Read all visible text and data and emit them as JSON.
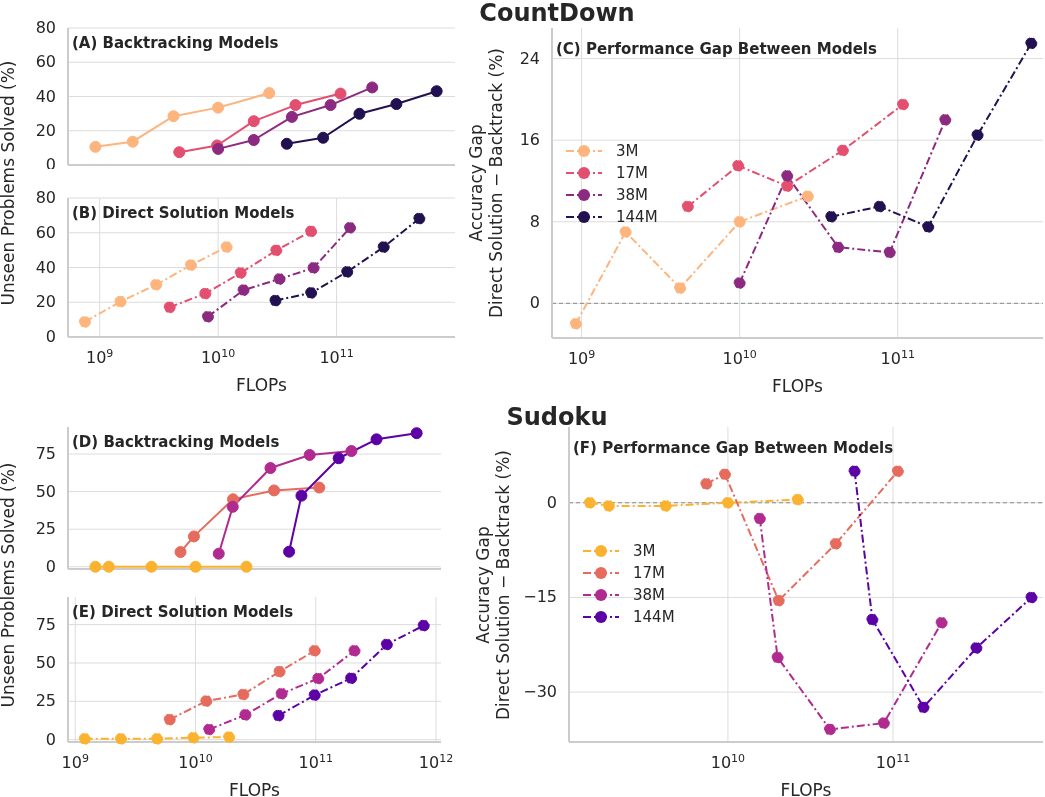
{
  "chart_data": [
    {
      "type": "line",
      "title": "(A) Backtracking Models",
      "ylabel": "Unseen Problems Solved (%)",
      "xlim": [
        540000000.0,
        1000000000000.0
      ],
      "ylim": [
        0,
        80
      ],
      "xticks": [
        {
          "value": 1000000000.0,
          "label": null
        },
        {
          "value": 10000000000.0,
          "label": null
        },
        {
          "value": 100000000000.0,
          "label": null
        }
      ],
      "yticks": [
        0,
        20,
        40,
        60,
        80
      ],
      "log": "x",
      "grid": true,
      "tick_labels": "y",
      "marker": "circle",
      "line_style": "solid",
      "series": [
        {
          "color": "#fdb47d",
          "x": [
            920000000.0,
            1900000000.0,
            4200000000.0,
            10000000000.0,
            27000000000.0
          ],
          "values": [
            10.6,
            13.6,
            28.5,
            33.5,
            42
          ]
        },
        {
          "color": "#e34f6f",
          "x": [
            4700000000.0,
            9800000000.0,
            20000000000.0,
            45000000000.0,
            108000000000.0
          ],
          "values": [
            7.5,
            11.4,
            25.6,
            35,
            41.7
          ]
        },
        {
          "color": "#8c2981",
          "x": [
            10000000000.0,
            20000000000.0,
            42000000000.0,
            89000000000.0,
            200000000000.0
          ],
          "values": [
            9.4,
            14.6,
            28.1,
            35,
            45.3
          ]
        },
        {
          "color": "#221150",
          "x": [
            38000000000.0,
            77000000000.0,
            156000000000.0,
            320000000000.0,
            700000000000.0
          ],
          "values": [
            12.4,
            15.9,
            29.9,
            35.6,
            43.1
          ]
        }
      ]
    },
    {
      "type": "line",
      "title": "(B) Direct Solution Models",
      "xlabel": "FLOPs",
      "xlim": [
        540000000.0,
        1000000000000.0
      ],
      "ylim": [
        0,
        80
      ],
      "xticks": [
        {
          "value": 1000000000.0,
          "label": "10$^{9}$"
        },
        {
          "value": 10000000000.0,
          "label": "10$^{10}$"
        },
        {
          "value": 100000000000.0,
          "label": "10$^{11}$"
        }
      ],
      "yticks": [
        0,
        20,
        40,
        60,
        80
      ],
      "log": "x",
      "grid": true,
      "marker": "circle",
      "line_style": "dashed",
      "series": [
        {
          "color": "#fdb47d",
          "x": [
            750000000.0,
            1500000000.0,
            3000000000.0,
            5900000000.0,
            11800000000.0
          ],
          "values": [
            8.7,
            20.4,
            30.1,
            41.4,
            51.8
          ]
        },
        {
          "color": "#e34f6f",
          "x": [
            3900000000.0,
            7800000000.0,
            15500000000.0,
            31000000000.0,
            61000000000.0
          ],
          "values": [
            17.1,
            25,
            36.9,
            49.9,
            60.8
          ]
        },
        {
          "color": "#8c2981",
          "x": [
            8200000000.0,
            16400000000.0,
            33000000000.0,
            64000000000.0,
            130000000000.0
          ],
          "values": [
            11.7,
            27,
            33.4,
            39.8,
            62.9
          ]
        },
        {
          "color": "#221150",
          "x": [
            30500000000.0,
            61000000000.0,
            123000000000.0,
            250000000000.0,
            500000000000.0
          ],
          "values": [
            21,
            25.4,
            37.5,
            51.8,
            68.2
          ]
        }
      ]
    },
    {
      "type": "line",
      "title": "(C) Performance Gap Between Models",
      "xlabel": "FLOPs",
      "ylabel": "Accuracy Gap\nDirect Solution − Backtrack (%)",
      "annotations": [
        "CountDown"
      ],
      "xlim": [
        650000000.0,
        830000000000.0
      ],
      "ylim": [
        -3.4,
        27
      ],
      "xticks": [
        {
          "value": 1000000000.0,
          "label": "10$^{9}$"
        },
        {
          "value": 10000000000.0,
          "label": "10$^{10}$"
        },
        {
          "value": 100000000000.0,
          "label": "10$^{11}$"
        }
      ],
      "yticks": [
        0,
        8,
        16,
        24
      ],
      "log": "x",
      "grid": true,
      "legend": "left",
      "marker": "circle",
      "line_style": "dashed",
      "ref_lines": [
        {
          "axis": "y",
          "value": 0,
          "color": "#8c8c8c",
          "line_style": "dashed"
        }
      ],
      "series": [
        {
          "name": "3M",
          "color": "#fdb47d",
          "x": [
            920000000.0,
            1900000000.0,
            4200000000.0,
            10000000000.0,
            27000000000.0
          ],
          "values": [
            -2.0,
            7.0,
            1.5,
            8.0,
            10.5
          ]
        },
        {
          "name": "17M",
          "color": "#e34f6f",
          "x": [
            4700000000.0,
            9800000000.0,
            20000000000.0,
            45000000000.0,
            108000000000.0
          ],
          "values": [
            9.5,
            13.5,
            11.5,
            15,
            19.5
          ]
        },
        {
          "name": "38M",
          "color": "#8c2981",
          "x": [
            10000000000.0,
            20000000000.0,
            42000000000.0,
            89000000000.0,
            200000000000.0
          ],
          "values": [
            2.0,
            12.5,
            5.5,
            5.0,
            18
          ]
        },
        {
          "name": "144M",
          "color": "#221150",
          "x": [
            38000000000.0,
            77000000000.0,
            156000000000.0,
            320000000000.0,
            700000000000.0
          ],
          "values": [
            8.5,
            9.5,
            7.5,
            16.5,
            25.5
          ]
        }
      ]
    },
    {
      "type": "line",
      "title": "(D) Backtracking Models",
      "ylabel": "Unseen Problems Solved (%)",
      "xlim": [
        870000000.0,
        1100000000000.0
      ],
      "ylim": [
        -1.5,
        93
      ],
      "xticks": [
        {
          "value": 1000000000.0,
          "label": null
        },
        {
          "value": 10000000000.0,
          "label": null
        },
        {
          "value": 100000000000.0,
          "label": null
        },
        {
          "value": 1000000000000.0,
          "label": null
        }
      ],
      "yticks": [
        0,
        25,
        50,
        75
      ],
      "log": "x",
      "grid": true,
      "tick_labels": "y",
      "marker": "circle",
      "line_style": "solid",
      "series": [
        {
          "color": "#fbb32f",
          "x": [
            1470000000.0,
            1900000000.0,
            4300000000.0,
            10000000000.0,
            26500000000.0
          ],
          "values": [
            0,
            0,
            0,
            0,
            0
          ]
        },
        {
          "color": "#e56b5d",
          "x": [
            7500000000.0,
            9700000000.0,
            20500000000.0,
            45000000000.0,
            107000000000.0
          ],
          "values": [
            9.8,
            20.2,
            44.9,
            50.8,
            52.7
          ]
        },
        {
          "color": "#b12a90",
          "x": [
            15600000000.0,
            20400000000.0,
            42000000000.0,
            89000000000.0,
            198000000000.0
          ],
          "values": [
            8.7,
            39.9,
            65.7,
            74.4,
            77
          ]
        },
        {
          "color": "#5c01a6",
          "x": [
            60000000000.0,
            76000000000.0,
            155000000000.0,
            320000000000.0,
            690000000000.0
          ],
          "values": [
            10,
            47.3,
            72.2,
            84.8,
            88.9
          ]
        }
      ]
    },
    {
      "type": "line",
      "title": "(E) Direct Solution Models",
      "xlabel": "FLOPs",
      "xlim": [
        870000000.0,
        1100000000000.0
      ],
      "ylim": [
        -1.5,
        93
      ],
      "xticks": [
        {
          "value": 1000000000.0,
          "label": "10$^{9}$"
        },
        {
          "value": 10000000000.0,
          "label": "10$^{10}$"
        },
        {
          "value": 100000000000.0,
          "label": "10$^{11}$"
        },
        {
          "value": 1000000000000.0,
          "label": "10$^{12}$"
        }
      ],
      "yticks": [
        0,
        25,
        50,
        75
      ],
      "log": "x",
      "grid": true,
      "marker": "circle",
      "line_style": "dashed",
      "series": [
        {
          "color": "#fbb32f",
          "x": [
            1200000000.0,
            2400000000.0,
            4800000000.0,
            9600000000.0,
            19000000000.0
          ],
          "values": [
            0.6,
            0.6,
            0.6,
            1.3,
            1.7
          ]
        },
        {
          "color": "#e56b5d",
          "x": [
            6100000000.0,
            12300000000.0,
            25000000000.0,
            50000000000.0,
            98000000000.0
          ],
          "values": [
            13.1,
            25.2,
            29.5,
            44.4,
            58
          ]
        },
        {
          "color": "#b12a90",
          "x": [
            13000000000.0,
            26000000000.0,
            52000000000.0,
            105000000000.0,
            210000000000.0
          ],
          "values": [
            6.7,
            16.2,
            30,
            39.9,
            58
          ]
        },
        {
          "color": "#5c01a6",
          "x": [
            49000000000.0,
            98000000000.0,
            197000000000.0,
            390000000000.0,
            790000000000.0
          ],
          "values": [
            15.7,
            29.1,
            40.1,
            62.1,
            74.4
          ]
        }
      ]
    },
    {
      "type": "line",
      "title": "(F) Performance Gap Between Models",
      "xlabel": "FLOPs",
      "ylabel": "Accuracy Gap\nDirect Solution − Backtrack (%)",
      "annotations": [
        "Sudoku"
      ],
      "xlim": [
        1090000000.0,
        810000000000.0
      ],
      "ylim": [
        -37.9,
        12
      ],
      "xticks": [
        {
          "value": 10000000000.0,
          "label": "10$^{10}$"
        },
        {
          "value": 100000000000.0,
          "label": "10$^{11}$"
        }
      ],
      "yticks": [
        -30,
        -15,
        0
      ],
      "log": "x",
      "grid": true,
      "legend": "left",
      "marker": "circle",
      "line_style": "dashed",
      "ref_lines": [
        {
          "axis": "y",
          "value": 0,
          "color": "#8c8c8c",
          "line_style": "dashed"
        }
      ],
      "series": [
        {
          "name": "3M",
          "color": "#fbb32f",
          "x": [
            1460000000.0,
            1900000000.0,
            4200000000.0,
            10000000000.0,
            26500000000.0
          ],
          "values": [
            0,
            -0.5,
            -0.5,
            0,
            0.5
          ]
        },
        {
          "name": "17M",
          "color": "#e56b5d",
          "x": [
            7400000000.0,
            9600000000.0,
            20300000000.0,
            45000000000.0,
            107000000000.0
          ],
          "values": [
            3,
            4.5,
            -15.5,
            -6.5,
            5
          ]
        },
        {
          "name": "38M",
          "color": "#b12a90",
          "x": [
            15600000000.0,
            20000000000.0,
            41500000000.0,
            88000000000.0,
            197000000000.0
          ],
          "values": [
            -2.5,
            -24.5,
            -35.9,
            -34.9,
            -19
          ]
        },
        {
          "name": "144M",
          "color": "#5c01a6",
          "x": [
            58500000000.0,
            75000000000.0,
            153000000000.0,
            320000000000.0,
            690000000000.0
          ],
          "values": [
            5,
            -18.5,
            -32.4,
            -23,
            -15
          ]
        }
      ]
    }
  ]
}
